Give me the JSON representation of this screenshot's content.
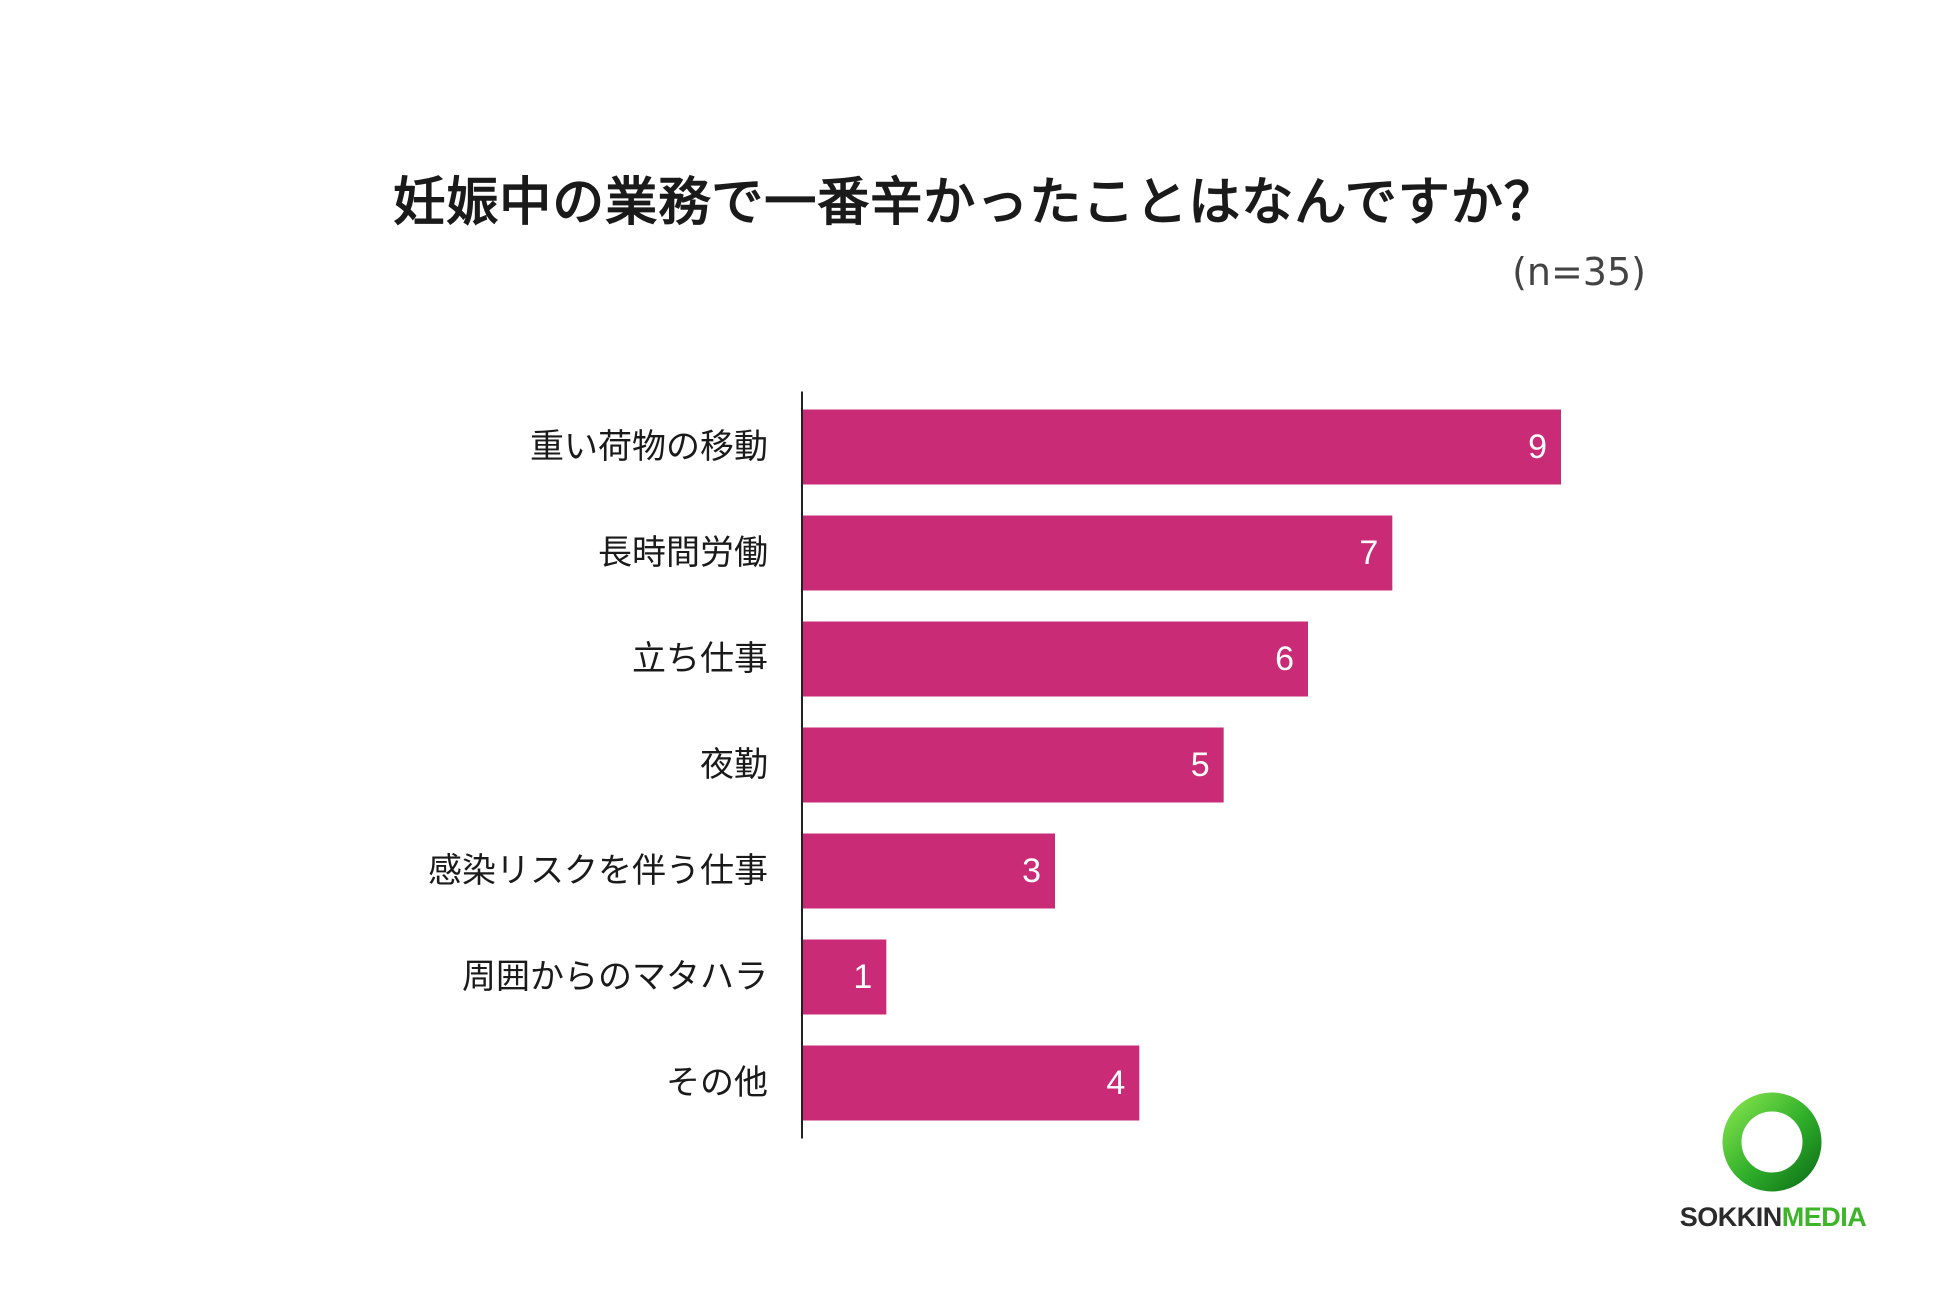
{
  "chart_data": {
    "type": "bar",
    "orientation": "horizontal",
    "title": "妊娠中の業務で一番辛かったことはなんですか？",
    "subtitle": "(n=35)",
    "categories": [
      "重い荷物の移動",
      "長時間労働",
      "立ち仕事",
      "夜勤",
      "感染リスクを伴う仕事",
      "周囲からのマタハラ",
      "その他"
    ],
    "values": [
      9,
      7,
      6,
      5,
      3,
      1,
      4
    ],
    "value_labels": [
      "9",
      "7",
      "6",
      "5",
      "3",
      "1",
      "4"
    ],
    "xlim": [
      0,
      9
    ],
    "grid": false,
    "bar_color": "#c92b77"
  },
  "logo": {
    "text_part1": "SOKKIN",
    "text_part2": "MEDIA",
    "ring_color": "#3cb529"
  }
}
